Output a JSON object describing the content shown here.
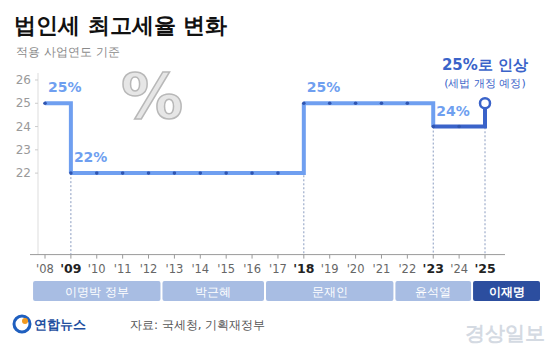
{
  "chart_data": {
    "type": "line",
    "title": "법인세 최고세율 변화",
    "subtitle": "적용 사업연도 기준",
    "categories": [
      "'08",
      "'09",
      "'10",
      "'11",
      "'12",
      "'13",
      "'14",
      "'15",
      "'16",
      "'17",
      "'18",
      "'19",
      "'20",
      "'21",
      "'22",
      "'23",
      "'24",
      "'25"
    ],
    "values": [
      25,
      22,
      22,
      22,
      22,
      22,
      22,
      22,
      22,
      22,
      25,
      25,
      25,
      25,
      25,
      24,
      24,
      25
    ],
    "value_labels": [
      "25%",
      "22%",
      null,
      null,
      null,
      null,
      null,
      null,
      null,
      null,
      "25%",
      null,
      null,
      null,
      null,
      "24%",
      null,
      "25%로 인상"
    ],
    "annotation": "(세법 개정 예정)",
    "color": "#6f9ff0",
    "line_style": "step",
    "marker": "circle",
    "data_labels": true,
    "grid": false,
    "ylim": [
      18.5,
      26.3
    ],
    "yticks": [
      22,
      23,
      24,
      25,
      26
    ],
    "periods": [
      {
        "label": "이명박 정부",
        "start": "'08",
        "end": "'12"
      },
      {
        "label": "박근혜",
        "start": "'13",
        "end": "'16"
      },
      {
        "label": "문재인",
        "start": "'17",
        "end": "'21"
      },
      {
        "label": "윤석열",
        "start": "'22",
        "end": "'24"
      },
      {
        "label": "이재명",
        "start": "'25",
        "end": "'25"
      }
    ],
    "source": "자료: 국세청, 기획재정부",
    "logo": "연합뉴스",
    "decoration": "%",
    "watermark": "경상일보"
  }
}
